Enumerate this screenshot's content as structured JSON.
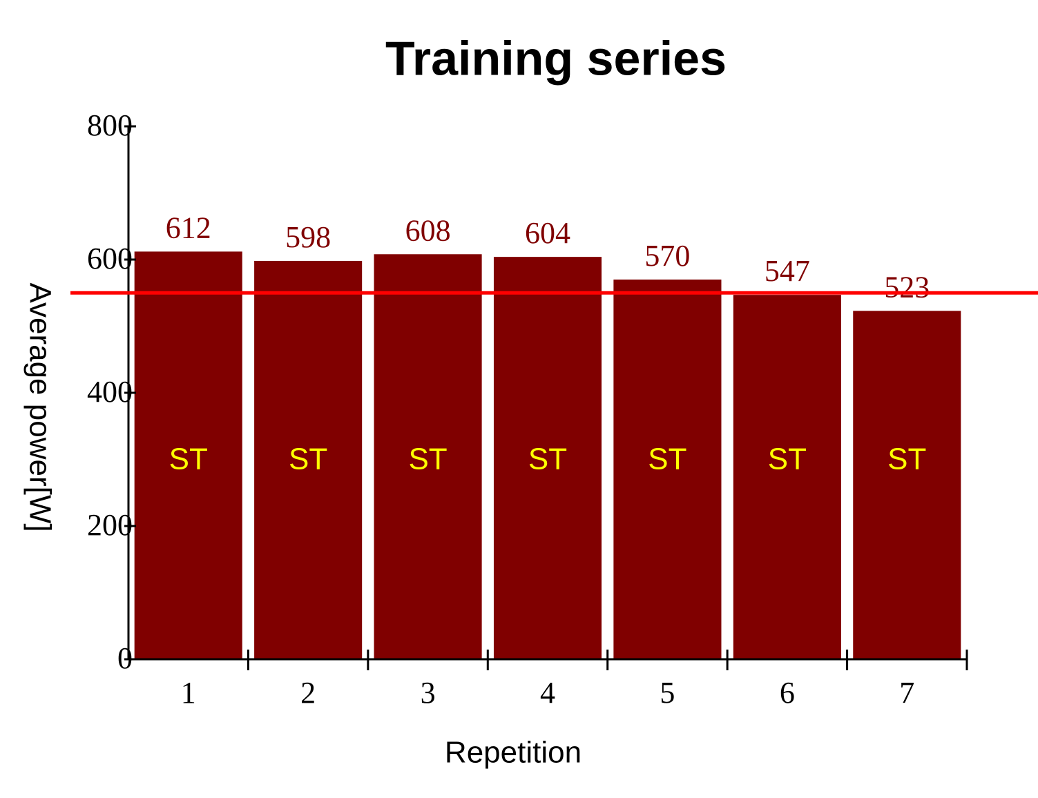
{
  "chart_data": {
    "type": "bar",
    "title": "Training series",
    "x_label": "Repetition",
    "y_label": "Average power[W]",
    "categories": [
      "1",
      "2",
      "3",
      "4",
      "5",
      "6",
      "7"
    ],
    "values": [
      612,
      598,
      608,
      604,
      570,
      547,
      523
    ],
    "bar_labels": [
      "ST",
      "ST",
      "ST",
      "ST",
      "ST",
      "ST",
      "ST"
    ],
    "color": "#800000",
    "value_label_color": "#800000",
    "bar_label_color": "#ffff00",
    "reference_line": {
      "value": 550,
      "color": "#ff0000"
    },
    "ylim": [
      0,
      800
    ],
    "yticks": [
      0,
      200,
      400,
      600,
      800
    ],
    "grid": false
  }
}
